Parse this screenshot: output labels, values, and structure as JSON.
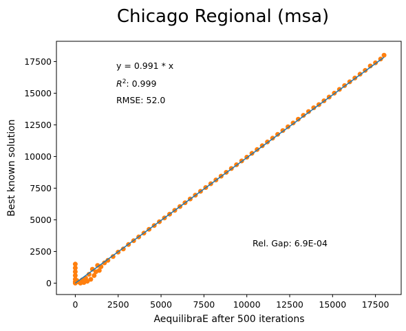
{
  "chart_data": {
    "type": "scatter",
    "title": "Chicago Regional (msa)",
    "xlabel": "AequilibraE after 500 iterations",
    "ylabel": "Best known solution",
    "xlim": [
      -1100,
      19000
    ],
    "ylim": [
      -900,
      19100
    ],
    "x_ticks": [
      0,
      2500,
      5000,
      7500,
      10000,
      12500,
      15000,
      17500
    ],
    "y_ticks": [
      0,
      2500,
      5000,
      7500,
      10000,
      12500,
      15000,
      17500
    ],
    "grid": false,
    "fit_slope": 0.991,
    "fit_range": [
      0,
      18000
    ],
    "annotations": {
      "equation": "y = 0.991 * x",
      "r2_label": "R",
      "r2_exponent": "2",
      "r2_value": ":  0.999",
      "rmse": "RMSE: 52.0",
      "rel_gap": "Rel. Gap: 6.9E-04"
    },
    "colors": {
      "points": "#ff7f0e",
      "fit_line": "#1f77b4"
    },
    "points": [
      [
        0,
        1500
      ],
      [
        0,
        1200
      ],
      [
        0,
        900
      ],
      [
        0,
        600
      ],
      [
        0,
        300
      ],
      [
        0,
        100
      ],
      [
        0,
        0
      ],
      [
        100,
        200
      ],
      [
        200,
        100
      ],
      [
        300,
        0
      ],
      [
        400,
        250
      ],
      [
        500,
        50
      ],
      [
        600,
        400
      ],
      [
        700,
        150
      ],
      [
        800,
        700
      ],
      [
        900,
        300
      ],
      [
        1000,
        1100
      ],
      [
        1100,
        600
      ],
      [
        1200,
        900
      ],
      [
        1300,
        1400
      ],
      [
        1400,
        1000
      ],
      [
        1500,
        1300
      ],
      [
        1700,
        1600
      ],
      [
        1900,
        1800
      ],
      [
        2200,
        2100
      ],
      [
        2500,
        2450
      ],
      [
        2800,
        2700
      ],
      [
        3100,
        3050
      ],
      [
        3400,
        3350
      ],
      [
        3700,
        3650
      ],
      [
        4000,
        3950
      ],
      [
        4300,
        4250
      ],
      [
        4600,
        4550
      ],
      [
        4900,
        4850
      ],
      [
        5200,
        5150
      ],
      [
        5500,
        5450
      ],
      [
        5800,
        5750
      ],
      [
        6100,
        6050
      ],
      [
        6400,
        6350
      ],
      [
        6700,
        6650
      ],
      [
        7000,
        6950
      ],
      [
        7300,
        7250
      ],
      [
        7600,
        7550
      ],
      [
        7900,
        7850
      ],
      [
        8200,
        8150
      ],
      [
        8500,
        8450
      ],
      [
        8800,
        8750
      ],
      [
        9100,
        9050
      ],
      [
        9400,
        9350
      ],
      [
        9700,
        9650
      ],
      [
        10000,
        9950
      ],
      [
        10300,
        10250
      ],
      [
        10600,
        10550
      ],
      [
        10900,
        10850
      ],
      [
        11200,
        11150
      ],
      [
        11500,
        11450
      ],
      [
        11800,
        11750
      ],
      [
        12100,
        12050
      ],
      [
        12400,
        12350
      ],
      [
        12700,
        12650
      ],
      [
        13000,
        12950
      ],
      [
        13300,
        13250
      ],
      [
        13600,
        13550
      ],
      [
        13900,
        13850
      ],
      [
        14200,
        14100
      ],
      [
        14500,
        14400
      ],
      [
        14800,
        14700
      ],
      [
        15100,
        15000
      ],
      [
        15400,
        15300
      ],
      [
        15700,
        15600
      ],
      [
        16000,
        15900
      ],
      [
        16300,
        16200
      ],
      [
        16600,
        16500
      ],
      [
        16900,
        16800
      ],
      [
        17200,
        17150
      ],
      [
        17500,
        17400
      ],
      [
        17800,
        17700
      ],
      [
        18000,
        18000
      ]
    ]
  }
}
